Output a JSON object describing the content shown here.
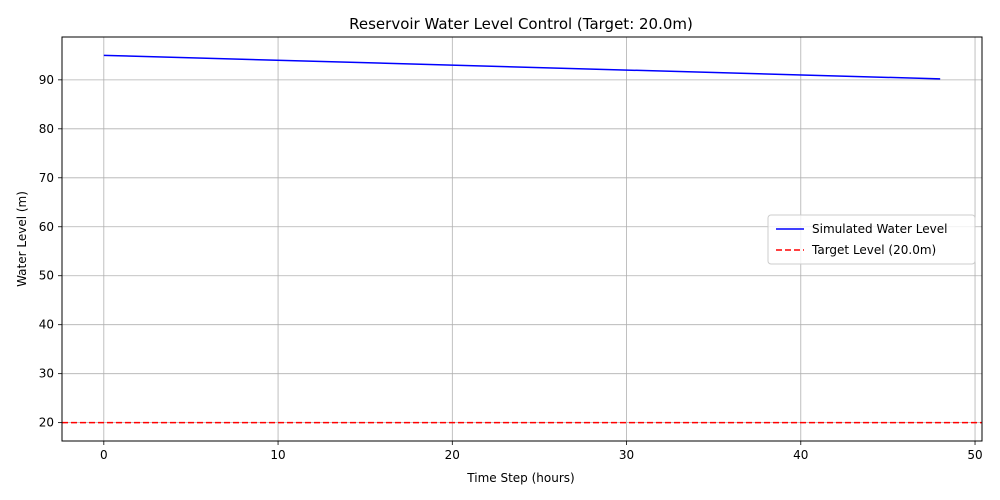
{
  "chart_data": {
    "type": "line",
    "title": "Reservoir Water Level Control (Target: 20.0m)",
    "xlabel": "Time Step (hours)",
    "ylabel": "Water Level (m)",
    "xlim": [
      -2.4,
      50.4
    ],
    "ylim": [
      16.25,
      98.75
    ],
    "xticks": [
      0,
      10,
      20,
      30,
      40,
      50
    ],
    "yticks": [
      20,
      30,
      40,
      50,
      60,
      70,
      80,
      90
    ],
    "grid": true,
    "legend_position": "center-right",
    "series": [
      {
        "name": "Simulated Water Level",
        "color": "#0000ff",
        "style": "solid",
        "x": [
          0,
          48
        ],
        "y": [
          95.0,
          90.2
        ]
      },
      {
        "name": "Target Level (20.0m)",
        "color": "#ff0000",
        "style": "dashed",
        "horizontal_line": 20.0
      }
    ]
  }
}
